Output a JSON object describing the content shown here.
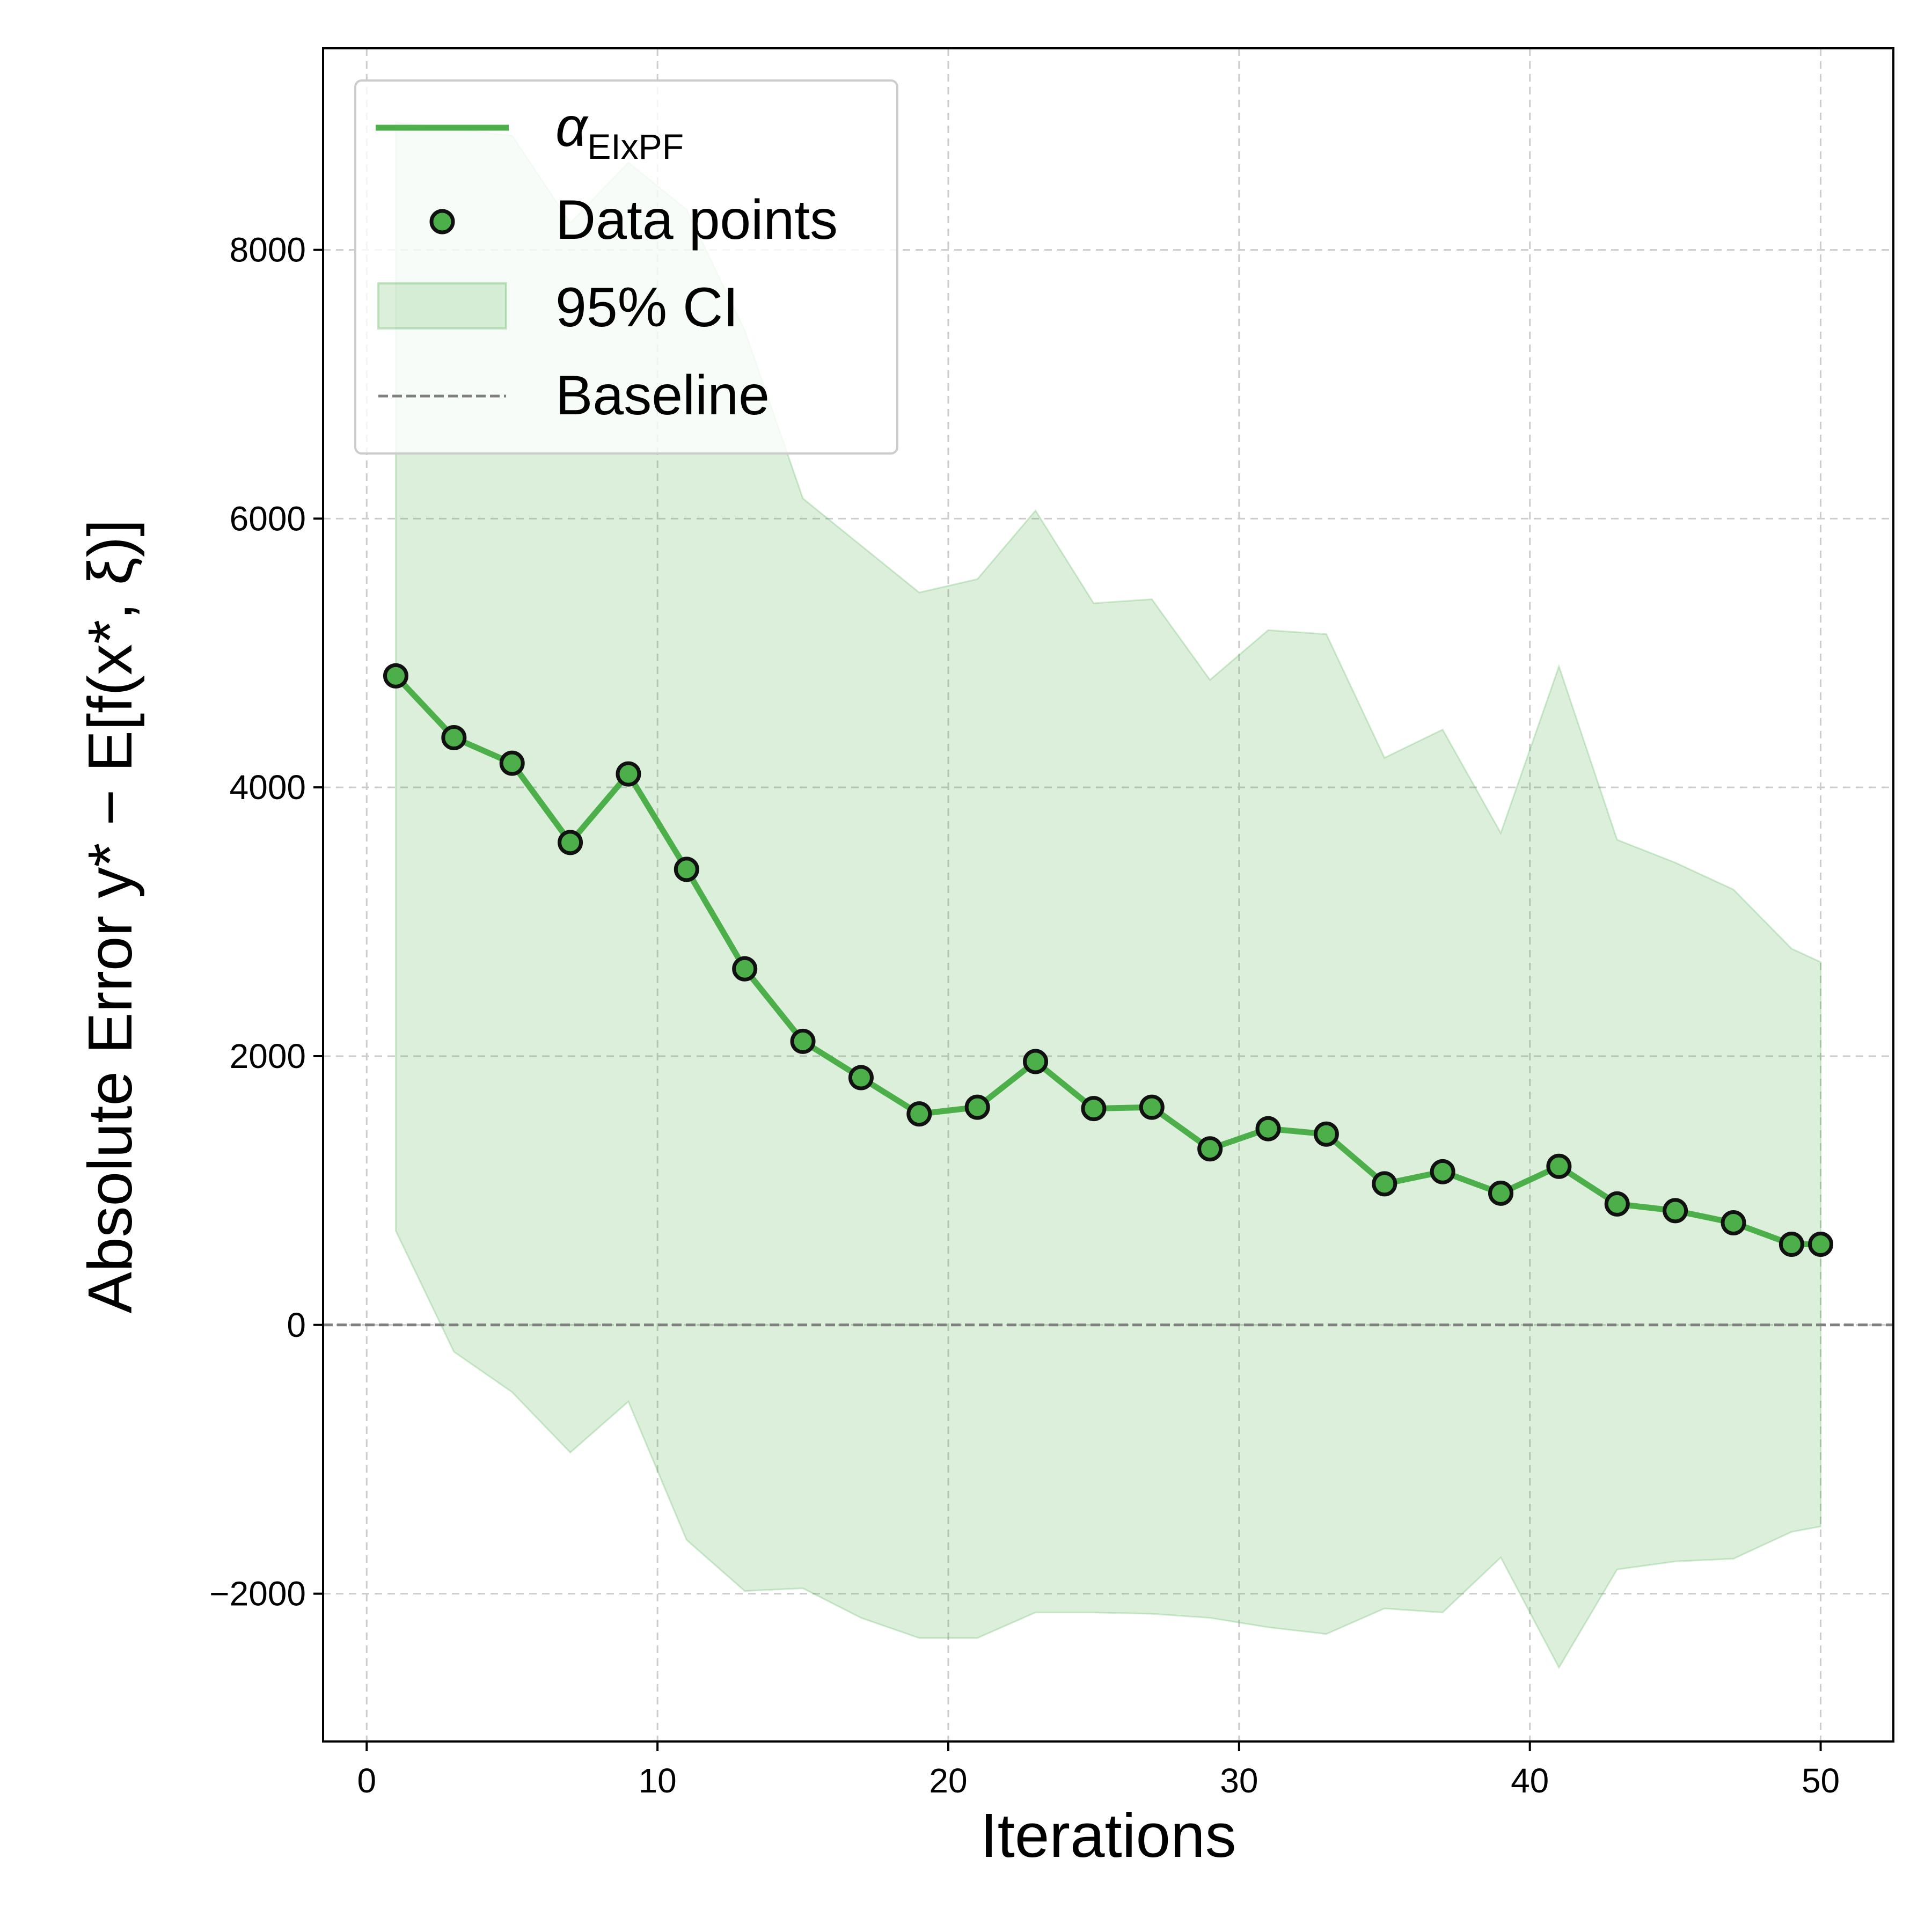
{
  "chart_data": {
    "type": "line",
    "xlabel": "Iterations",
    "ylabel": "Absolute Error    y* − E[f(x*, ξ)]",
    "xlim": [
      -1.5,
      52.5
    ],
    "ylim": [
      -3100,
      9500
    ],
    "x_ticks": [
      0,
      10,
      20,
      30,
      40,
      50
    ],
    "y_ticks": [
      -2000,
      0,
      2000,
      4000,
      6000,
      8000
    ],
    "grid": true,
    "legend_position": "upper-left",
    "colors": {
      "line": "#4daf4a",
      "ci_fill": "#4daf4a",
      "marker_edge": "#111111",
      "baseline": "#808080",
      "grid": "#cccccc"
    },
    "legend": {
      "line_label": "α",
      "line_label_sub": "EIxPF",
      "points_label": "Data points",
      "ci_label": "95% CI",
      "baseline_label": "Baseline"
    },
    "series": [
      {
        "name": "α EIxPF",
        "x": [
          1,
          3,
          5,
          7,
          9,
          11,
          13,
          15,
          17,
          19,
          21,
          23,
          25,
          27,
          29,
          31,
          33,
          35,
          37,
          39,
          41,
          43,
          45,
          47,
          49,
          50
        ],
        "values": [
          4830,
          4370,
          4180,
          3590,
          4100,
          3390,
          2650,
          2110,
          1840,
          1570,
          1620,
          1960,
          1610,
          1620,
          1310,
          1460,
          1420,
          1050,
          1140,
          980,
          1180,
          900,
          850,
          760,
          600,
          600
        ],
        "ci_lower": [
          700,
          -200,
          -500,
          -950,
          -570,
          -1600,
          -1980,
          -1960,
          -2180,
          -2330,
          -2330,
          -2140,
          -2140,
          -2150,
          -2180,
          -2250,
          -2300,
          -2110,
          -2140,
          -1730,
          -2550,
          -1820,
          -1760,
          -1740,
          -1540,
          -1500
        ],
        "ci_upper": [
          8950,
          8900,
          8850,
          8200,
          8650,
          8300,
          7400,
          6150,
          5800,
          5450,
          5550,
          6060,
          5370,
          5400,
          4800,
          5170,
          5140,
          4220,
          4430,
          3660,
          4900,
          3610,
          3440,
          3240,
          2800,
          2700
        ]
      }
    ],
    "baseline_value": 0
  }
}
